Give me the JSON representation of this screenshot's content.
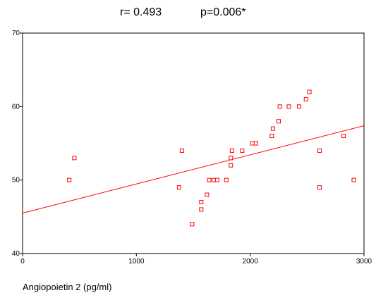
{
  "chart_data": {
    "type": "scatter",
    "title": "",
    "stats": {
      "r_text": "r= 0.493",
      "p_text": "p=0.006*"
    },
    "xlabel": "Angiopoietin 2 (pg/ml)",
    "ylabel": "",
    "xlim": [
      0,
      3000
    ],
    "ylim": [
      40,
      70
    ],
    "x_ticks": [
      0,
      1000,
      2000,
      3000
    ],
    "y_ticks": [
      40,
      50,
      60,
      70
    ],
    "grid": false,
    "legend": "none",
    "marker_color": "#ff0000",
    "fit_line": {
      "color": "#ff0000",
      "x": [
        0,
        3000
      ],
      "y": [
        45.5,
        57.4
      ]
    },
    "points": [
      {
        "x": 410,
        "y": 50
      },
      {
        "x": 455,
        "y": 53
      },
      {
        "x": 1375,
        "y": 49
      },
      {
        "x": 1400,
        "y": 54
      },
      {
        "x": 1490,
        "y": 44
      },
      {
        "x": 1570,
        "y": 47
      },
      {
        "x": 1570,
        "y": 46
      },
      {
        "x": 1620,
        "y": 48
      },
      {
        "x": 1640,
        "y": 50
      },
      {
        "x": 1680,
        "y": 50
      },
      {
        "x": 1710,
        "y": 50
      },
      {
        "x": 1790,
        "y": 50
      },
      {
        "x": 1830,
        "y": 52
      },
      {
        "x": 1830,
        "y": 53
      },
      {
        "x": 1840,
        "y": 54
      },
      {
        "x": 1930,
        "y": 54
      },
      {
        "x": 2020,
        "y": 55
      },
      {
        "x": 2050,
        "y": 55
      },
      {
        "x": 2190,
        "y": 56
      },
      {
        "x": 2200,
        "y": 57
      },
      {
        "x": 2250,
        "y": 58
      },
      {
        "x": 2260,
        "y": 60
      },
      {
        "x": 2340,
        "y": 60
      },
      {
        "x": 2430,
        "y": 60
      },
      {
        "x": 2490,
        "y": 61
      },
      {
        "x": 2520,
        "y": 62
      },
      {
        "x": 2610,
        "y": 54
      },
      {
        "x": 2610,
        "y": 49
      },
      {
        "x": 2820,
        "y": 56
      },
      {
        "x": 2910,
        "y": 50
      }
    ]
  }
}
